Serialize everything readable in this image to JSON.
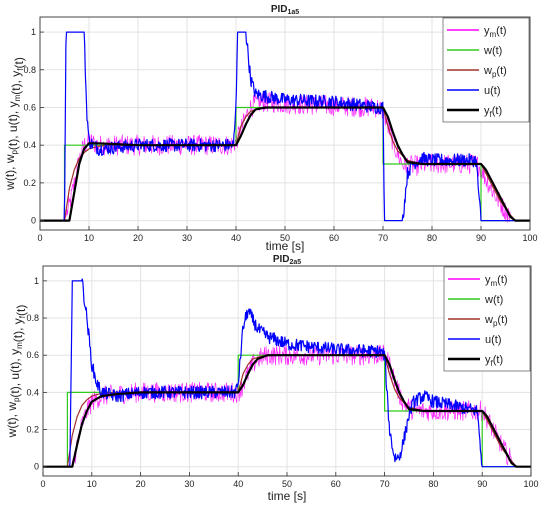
{
  "chart_data": [
    {
      "type": "line",
      "title": "PID",
      "title_sub": "1a5",
      "xlabel": "time [s]",
      "ylabel": "w(t), w_p(t), u(t), y_m(t), y_f(t)",
      "xlim": [
        0,
        100
      ],
      "ylim": [
        -0.05,
        1.08
      ],
      "xticks": [
        0,
        10,
        20,
        30,
        40,
        50,
        60,
        70,
        80,
        90,
        100
      ],
      "yticks": [
        0,
        0.2,
        0.4,
        0.6,
        0.8,
        1
      ],
      "ytick_labels": [
        "0",
        "0.2",
        "0.4",
        "0.6",
        "0.8",
        "1"
      ],
      "grid": true,
      "legend_position": "top-right",
      "series": [
        {
          "name": "y_m(t)",
          "color": "#ff00ff",
          "noise": true,
          "x": [
            0,
            5,
            6,
            7,
            8,
            9,
            10,
            12,
            20,
            39,
            40,
            41,
            42,
            43,
            44,
            46,
            50,
            69,
            70,
            71,
            72,
            73,
            74,
            76,
            80,
            89,
            90,
            91,
            93,
            95,
            97,
            100
          ],
          "y": [
            0,
            0,
            0.08,
            0.2,
            0.32,
            0.4,
            0.42,
            0.4,
            0.4,
            0.4,
            0.42,
            0.48,
            0.55,
            0.6,
            0.62,
            0.63,
            0.62,
            0.6,
            0.58,
            0.5,
            0.42,
            0.35,
            0.3,
            0.29,
            0.3,
            0.3,
            0.28,
            0.22,
            0.13,
            0.05,
            0,
            0
          ]
        },
        {
          "name": "w(t)",
          "color": "#2ecc1a",
          "x": [
            0,
            5,
            5,
            40,
            40,
            70,
            70,
            90,
            90,
            100
          ],
          "y": [
            0,
            0,
            0.4,
            0.4,
            0.6,
            0.6,
            0.3,
            0.3,
            0,
            0
          ]
        },
        {
          "name": "w_p(t)",
          "color": "#a0302a",
          "x": [
            0,
            5,
            6,
            7,
            8,
            9,
            10,
            12,
            15,
            40,
            41,
            42,
            43,
            45,
            48,
            70,
            71,
            72,
            73,
            75,
            78,
            90,
            92,
            94,
            96,
            97,
            100
          ],
          "y": [
            0,
            0,
            0.17,
            0.27,
            0.33,
            0.36,
            0.38,
            0.395,
            0.4,
            0.4,
            0.5,
            0.55,
            0.58,
            0.595,
            0.6,
            0.6,
            0.5,
            0.42,
            0.37,
            0.32,
            0.3,
            0.3,
            0.2,
            0.1,
            0.03,
            0,
            0
          ]
        },
        {
          "name": "u(t)",
          "color": "#0000ff",
          "noise": true,
          "x": [
            0,
            5,
            5.3,
            9,
            9.5,
            10,
            12,
            20,
            39.5,
            40,
            40.3,
            42,
            43,
            44,
            46,
            50,
            60,
            69,
            70,
            70.3,
            74,
            75,
            76,
            78,
            80,
            89,
            90,
            100
          ],
          "y": [
            0,
            0,
            1,
            1,
            0.6,
            0.42,
            0.38,
            0.4,
            0.4,
            0.6,
            1,
            1,
            0.75,
            0.67,
            0.66,
            0.64,
            0.63,
            0.6,
            0.6,
            0,
            0,
            0.25,
            0.3,
            0.33,
            0.32,
            0.32,
            0,
            0
          ]
        },
        {
          "name": "y_f(t)",
          "color": "#000000",
          "x": [
            0,
            6,
            7,
            8,
            9,
            10,
            12,
            20,
            40,
            41,
            42,
            43,
            44,
            46,
            50,
            70,
            71,
            72,
            73,
            74,
            75,
            78,
            90,
            91,
            93,
            95,
            96,
            97,
            100
          ],
          "y": [
            0,
            0,
            0.15,
            0.3,
            0.38,
            0.41,
            0.41,
            0.4,
            0.4,
            0.45,
            0.51,
            0.56,
            0.59,
            0.6,
            0.6,
            0.6,
            0.55,
            0.47,
            0.4,
            0.35,
            0.31,
            0.3,
            0.3,
            0.27,
            0.17,
            0.07,
            0.02,
            0,
            0
          ]
        }
      ]
    },
    {
      "type": "line",
      "title": "PID",
      "title_sub": "2a5",
      "xlabel": "time [s]",
      "ylabel": "w(t), w_p(t), u(t), y_m(t), y_f(t)",
      "xlim": [
        0,
        100
      ],
      "ylim": [
        -0.05,
        1.08
      ],
      "xticks": [
        0,
        10,
        20,
        30,
        40,
        50,
        60,
        70,
        80,
        90,
        100
      ],
      "yticks": [
        0,
        0.2,
        0.4,
        0.6,
        0.8,
        1
      ],
      "ytick_labels": [
        "0",
        "0.2",
        "0.4",
        "0.6",
        "0.8",
        "1"
      ],
      "grid": true,
      "legend_position": "top-right",
      "series": [
        {
          "name": "y_m(t)",
          "color": "#ff00ff",
          "noise": true,
          "x": [
            0,
            6,
            7,
            8,
            9,
            10,
            12,
            15,
            20,
            40,
            41,
            42,
            43,
            44,
            46,
            50,
            70,
            71,
            72,
            73,
            74,
            76,
            80,
            90,
            91,
            93,
            95,
            97,
            100
          ],
          "y": [
            0,
            0,
            0.12,
            0.23,
            0.3,
            0.35,
            0.38,
            0.39,
            0.4,
            0.4,
            0.44,
            0.5,
            0.55,
            0.58,
            0.6,
            0.6,
            0.6,
            0.55,
            0.47,
            0.39,
            0.34,
            0.3,
            0.3,
            0.3,
            0.26,
            0.16,
            0.07,
            0,
            0
          ]
        },
        {
          "name": "w(t)",
          "color": "#2ecc1a",
          "x": [
            0,
            5,
            5,
            40,
            40,
            70,
            70,
            90,
            90,
            100
          ],
          "y": [
            0,
            0,
            0.4,
            0.4,
            0.6,
            0.6,
            0.3,
            0.3,
            0,
            0
          ]
        },
        {
          "name": "w_p(t)",
          "color": "#a0302a",
          "x": [
            0,
            5,
            6,
            7,
            8,
            9,
            10,
            12,
            15,
            40,
            41,
            42,
            43,
            45,
            48,
            70,
            71,
            72,
            73,
            75,
            78,
            90,
            92,
            94,
            96,
            97,
            100
          ],
          "y": [
            0,
            0,
            0.17,
            0.27,
            0.33,
            0.36,
            0.38,
            0.395,
            0.4,
            0.4,
            0.5,
            0.55,
            0.58,
            0.595,
            0.6,
            0.6,
            0.5,
            0.42,
            0.37,
            0.32,
            0.3,
            0.3,
            0.2,
            0.1,
            0.03,
            0,
            0
          ]
        },
        {
          "name": "u(t)",
          "color": "#0000ff",
          "noise": true,
          "x": [
            0,
            5.5,
            6,
            8,
            9,
            10,
            11,
            12,
            15,
            20,
            39.5,
            40,
            41,
            42,
            44,
            46,
            50,
            60,
            69,
            70,
            70.5,
            71,
            72,
            73,
            74,
            75,
            76,
            78,
            80,
            89,
            90,
            100
          ],
          "y": [
            0,
            0,
            1,
            1,
            0.8,
            0.55,
            0.45,
            0.4,
            0.38,
            0.4,
            0.4,
            0.45,
            0.75,
            0.84,
            0.74,
            0.7,
            0.66,
            0.63,
            0.62,
            0.6,
            0.4,
            0.2,
            0.05,
            0.05,
            0.15,
            0.28,
            0.35,
            0.38,
            0.35,
            0.3,
            0,
            0
          ]
        },
        {
          "name": "y_f(t)",
          "color": "#000000",
          "x": [
            0,
            6,
            7,
            8,
            9,
            10,
            12,
            15,
            20,
            40,
            41,
            42,
            43,
            44,
            46,
            50,
            70,
            71,
            72,
            73,
            74,
            75,
            78,
            90,
            91,
            93,
            95,
            96,
            97,
            100
          ],
          "y": [
            0,
            0,
            0.12,
            0.23,
            0.3,
            0.35,
            0.38,
            0.39,
            0.4,
            0.4,
            0.44,
            0.5,
            0.55,
            0.58,
            0.6,
            0.6,
            0.6,
            0.55,
            0.47,
            0.4,
            0.35,
            0.31,
            0.3,
            0.3,
            0.27,
            0.17,
            0.07,
            0.02,
            0,
            0
          ]
        }
      ]
    }
  ]
}
